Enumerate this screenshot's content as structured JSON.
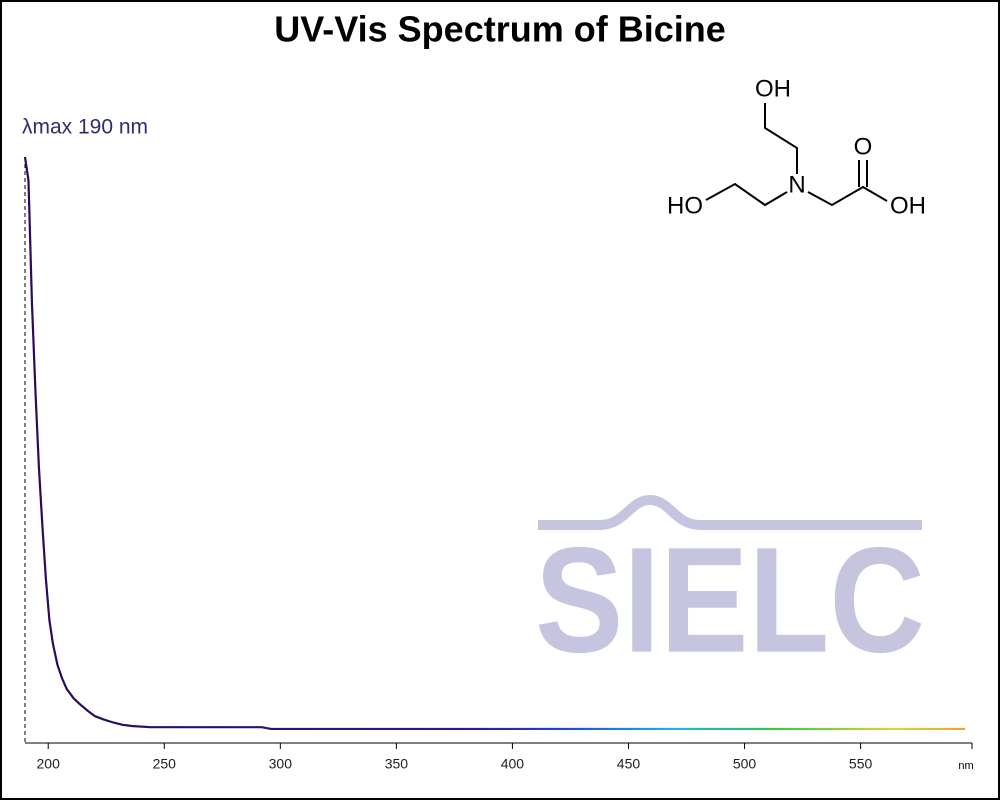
{
  "chart_data": {
    "type": "line",
    "title": "UV-Vis Spectrum of Bicine",
    "annotation": {
      "label": "λmax  190 nm",
      "x": 190
    },
    "x_unit": "nm",
    "x": [
      190,
      191.5,
      193,
      194.5,
      196,
      197.5,
      199,
      200.5,
      202,
      204,
      206,
      208,
      211,
      214,
      217,
      220,
      224,
      228,
      232,
      236,
      244,
      292,
      296,
      350,
      400,
      450,
      500,
      550,
      595
    ],
    "values": [
      1.0,
      0.96,
      0.75,
      0.6,
      0.47,
      0.37,
      0.28,
      0.21,
      0.17,
      0.133,
      0.11,
      0.092,
      0.076,
      0.065,
      0.055,
      0.046,
      0.04,
      0.035,
      0.031,
      0.029,
      0.027,
      0.027,
      0.024,
      0.024,
      0.024,
      0.024,
      0.024,
      0.024,
      0.024
    ],
    "color_stops": [
      {
        "x": 190,
        "color": "#2a0a5a"
      },
      {
        "x": 380,
        "color": "#2a1a8a"
      },
      {
        "x": 420,
        "color": "#1f3fe0"
      },
      {
        "x": 470,
        "color": "#19b8e8"
      },
      {
        "x": 510,
        "color": "#2ec84a"
      },
      {
        "x": 565,
        "color": "#d8d830"
      },
      {
        "x": 595,
        "color": "#f0a030"
      }
    ],
    "xlim": [
      190,
      598
    ],
    "ylim": [
      0,
      1
    ],
    "xticks": [
      200,
      250,
      300,
      350,
      400,
      450,
      500,
      550
    ],
    "structure_labels": [
      "OH",
      "O",
      "HO",
      "N",
      "OH"
    ],
    "watermark": "SIELC"
  }
}
